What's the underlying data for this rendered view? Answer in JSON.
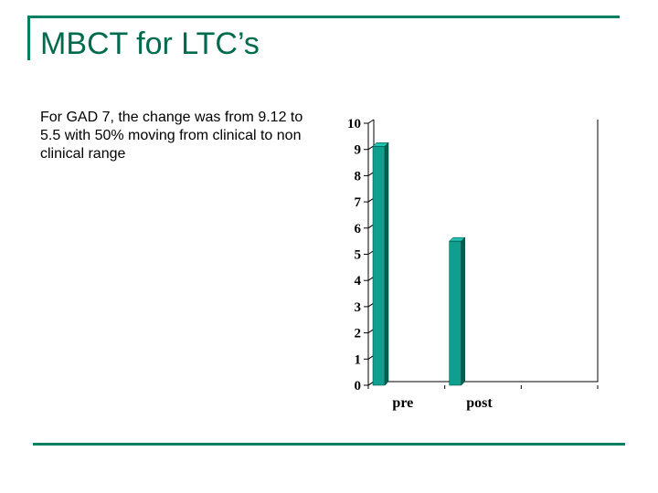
{
  "slide": {
    "title": "MBCT for LTC’s",
    "body": "For GAD 7, the change was from 9.12 to 5.5 with 50% moving from clinical to non clinical range"
  },
  "colors": {
    "accent": "#008060",
    "title": "#006a4e",
    "bar_front": "#109f8f",
    "bar_side": "#006050",
    "bar_top": "#1fc3b0"
  },
  "chart_data": {
    "type": "bar",
    "title": "",
    "xlabel": "",
    "ylabel": "",
    "categories": [
      "pre",
      "post",
      ""
    ],
    "values": [
      9.12,
      5.5,
      null
    ],
    "yticks": [
      "0",
      "1",
      "2",
      "3",
      "4",
      "5",
      "6",
      "7",
      "8",
      "9",
      "10"
    ],
    "ylim": [
      0,
      10
    ],
    "grid": false,
    "legend": "none"
  }
}
